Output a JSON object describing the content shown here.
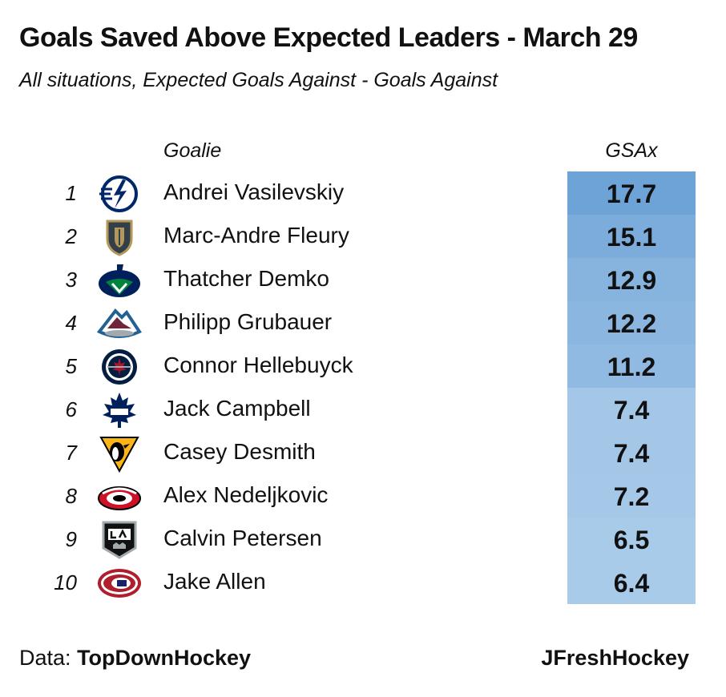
{
  "title": "Goals Saved Above Expected Leaders - March 29",
  "subtitle": "All situations, Expected Goals Against - Goals Against",
  "columns": {
    "goalie": "Goalie",
    "value": "GSAx"
  },
  "footer": {
    "data_label": "Data:",
    "data_source": "TopDownHockey",
    "credit": "JFreshHockey"
  },
  "chart_data": {
    "type": "table",
    "rows": [
      {
        "rank": "1",
        "goalie": "Andrei Vasilevskiy",
        "gsax": "17.7",
        "value": 17.7,
        "logo": "lightning-logo-icon"
      },
      {
        "rank": "2",
        "goalie": "Marc-Andre Fleury",
        "gsax": "15.1",
        "value": 15.1,
        "logo": "golden-knights-logo-icon"
      },
      {
        "rank": "3",
        "goalie": "Thatcher Demko",
        "gsax": "12.9",
        "value": 12.9,
        "logo": "canucks-logo-icon"
      },
      {
        "rank": "4",
        "goalie": "Philipp Grubauer",
        "gsax": "12.2",
        "value": 12.2,
        "logo": "avalanche-logo-icon"
      },
      {
        "rank": "5",
        "goalie": "Connor Hellebuyck",
        "gsax": "11.2",
        "value": 11.2,
        "logo": "jets-logo-icon"
      },
      {
        "rank": "6",
        "goalie": "Jack Campbell",
        "gsax": "7.4",
        "value": 7.4,
        "logo": "maple-leafs-logo-icon"
      },
      {
        "rank": "7",
        "goalie": "Casey Desmith",
        "gsax": "7.4",
        "value": 7.4,
        "logo": "penguins-logo-icon"
      },
      {
        "rank": "8",
        "goalie": "Alex Nedeljkovic",
        "gsax": "7.2",
        "value": 7.2,
        "logo": "hurricanes-logo-icon"
      },
      {
        "rank": "9",
        "goalie": "Calvin Petersen",
        "gsax": "6.5",
        "value": 6.5,
        "logo": "kings-logo-icon"
      },
      {
        "rank": "10",
        "goalie": "Jake Allen",
        "gsax": "6.4",
        "value": 6.4,
        "logo": "canadiens-logo-icon"
      }
    ],
    "color_scale": {
      "low": "#a9cbea",
      "high": "#6da3d6"
    }
  }
}
